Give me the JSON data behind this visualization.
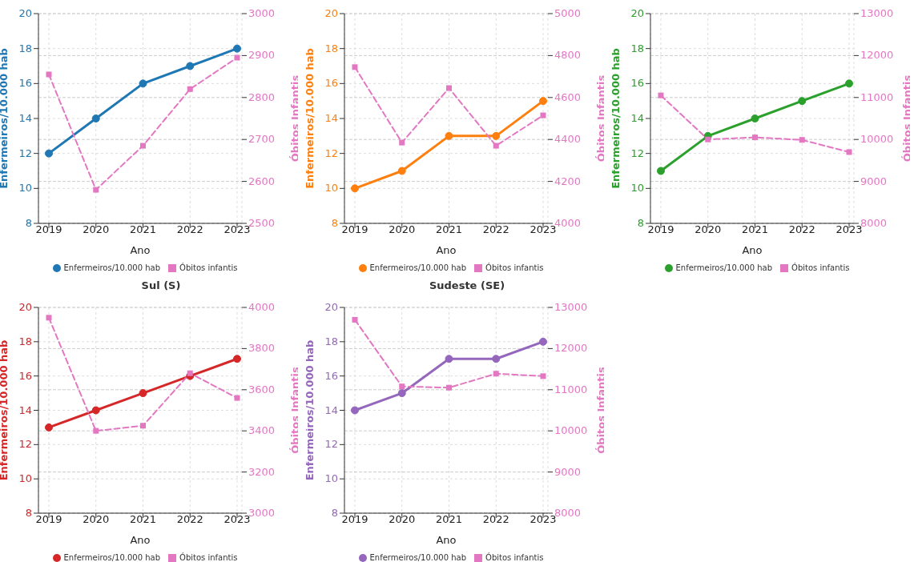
{
  "chart_data": [
    {
      "type": "line",
      "categories": [
        "2019",
        "2020",
        "2021",
        "2022",
        "2023"
      ],
      "xlabel": "Ano",
      "ylabel": "Enfermeiros/10.000 hab",
      "y2label": "Óbitos Infantis",
      "ylim": [
        8,
        20
      ],
      "yticks": [
        8,
        10,
        12,
        14,
        16,
        18,
        20
      ],
      "y2lim": [
        2500,
        3000
      ],
      "y2ticks": [
        2500,
        2600,
        2700,
        2800,
        2900,
        3000
      ],
      "grid": true,
      "legend": "bottom",
      "series": [
        {
          "name": "Enfermeiros/10.000 hab",
          "color": "#1f77b4",
          "marker": "circle",
          "line_style": "solid",
          "values": [
            12,
            14,
            16,
            17,
            18
          ]
        },
        {
          "name": "Óbitos infantis",
          "color": "#e377c2",
          "marker": "square",
          "line_style": "dashed",
          "axis": "y2",
          "values": [
            2855,
            2580,
            2685,
            2820,
            2895
          ]
        }
      ]
    },
    {
      "type": "line",
      "categories": [
        "2019",
        "2020",
        "2021",
        "2022",
        "2023"
      ],
      "xlabel": "Ano",
      "ylabel": "Enfermeiros/10.000 hab",
      "y2label": "Óbitos Infantis",
      "ylim": [
        8,
        20
      ],
      "yticks": [
        8,
        10,
        12,
        14,
        16,
        18,
        20
      ],
      "y2lim": [
        4000,
        5000
      ],
      "y2ticks": [
        4000,
        4200,
        4400,
        4600,
        4800,
        5000
      ],
      "grid": true,
      "legend": "bottom",
      "series": [
        {
          "name": "Enfermeiros/10.000 hab",
          "color": "#ff7f0e",
          "marker": "circle",
          "line_style": "solid",
          "values": [
            10,
            11,
            13,
            13,
            15
          ]
        },
        {
          "name": "Óbitos infantis",
          "color": "#e377c2",
          "marker": "square",
          "line_style": "dashed",
          "axis": "y2",
          "values": [
            4745,
            4385,
            4645,
            4370,
            4515
          ]
        }
      ]
    },
    {
      "type": "line",
      "categories": [
        "2019",
        "2020",
        "2021",
        "2022",
        "2023"
      ],
      "xlabel": "Ano",
      "ylabel": "Enfermeiros/10.000 hab",
      "y2label": "Óbitos Infantis",
      "ylim": [
        8,
        20
      ],
      "yticks": [
        8,
        10,
        12,
        14,
        16,
        18,
        20
      ],
      "y2lim": [
        8000,
        13000
      ],
      "y2ticks": [
        8000,
        9000,
        10000,
        11000,
        12000,
        13000
      ],
      "grid": true,
      "legend": "bottom",
      "series": [
        {
          "name": "Enfermeiros/10.000 hab",
          "color": "#2ca02c",
          "marker": "circle",
          "line_style": "solid",
          "values": [
            11,
            13,
            14,
            15,
            16
          ]
        },
        {
          "name": "Óbitos infantis",
          "color": "#e377c2",
          "marker": "square",
          "line_style": "dashed",
          "axis": "y2",
          "values": [
            11050,
            10000,
            10050,
            9990,
            9700
          ]
        }
      ]
    },
    {
      "type": "line",
      "title": "Sul (S)",
      "categories": [
        "2019",
        "2020",
        "2021",
        "2022",
        "2023"
      ],
      "xlabel": "Ano",
      "ylabel": "Enfermeiros/10.000 hab",
      "y2label": "Óbitos Infantis",
      "ylim": [
        8,
        20
      ],
      "yticks": [
        8,
        10,
        12,
        14,
        16,
        18,
        20
      ],
      "y2lim": [
        3000,
        4000
      ],
      "y2ticks": [
        3000,
        3200,
        3400,
        3600,
        3800,
        4000
      ],
      "grid": true,
      "legend": "bottom",
      "series": [
        {
          "name": "Enfermeiros/10.000 hab",
          "color": "#d62728",
          "marker": "circle",
          "line_style": "solid",
          "values": [
            13,
            14,
            15,
            16,
            17
          ]
        },
        {
          "name": "Óbitos infantis",
          "color": "#e377c2",
          "marker": "square",
          "line_style": "dashed",
          "axis": "y2",
          "values": [
            3950,
            3400,
            3425,
            3680,
            3560
          ]
        }
      ]
    },
    {
      "type": "line",
      "title": "Sudeste (SE)",
      "categories": [
        "2019",
        "2020",
        "2021",
        "2022",
        "2023"
      ],
      "xlabel": "Ano",
      "ylabel": "Enfermeiros/10.000 hab",
      "y2label": "Óbitos Infantis",
      "ylim": [
        8,
        20
      ],
      "yticks": [
        8,
        10,
        12,
        14,
        16,
        18,
        20
      ],
      "y2lim": [
        8000,
        13000
      ],
      "y2ticks": [
        8000,
        9000,
        10000,
        11000,
        12000,
        13000
      ],
      "grid": true,
      "legend": "bottom",
      "series": [
        {
          "name": "Enfermeiros/10.000 hab",
          "color": "#9467bd",
          "marker": "circle",
          "line_style": "solid",
          "values": [
            14,
            15,
            17,
            17,
            18
          ]
        },
        {
          "name": "Óbitos infantis",
          "color": "#e377c2",
          "marker": "square",
          "line_style": "dashed",
          "axis": "y2",
          "values": [
            12700,
            11080,
            11050,
            11390,
            11330
          ]
        }
      ]
    }
  ]
}
